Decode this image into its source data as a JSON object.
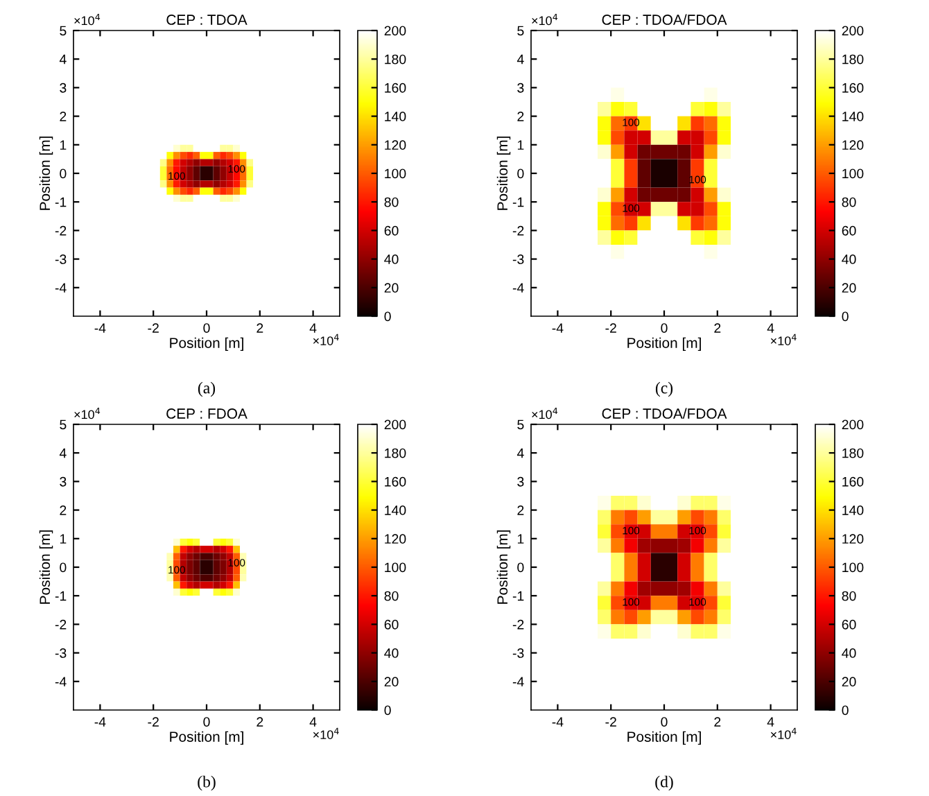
{
  "chart_data": [
    {
      "type": "heatmap",
      "title": "CEP : TDOA",
      "xlabel": "Position [m]",
      "ylabel": "Position [m]",
      "x": [
        -1.875,
        -1.625,
        -1.375,
        -1.125,
        -0.875,
        -0.625,
        -0.375,
        -0.125,
        0.125,
        0.375,
        0.625,
        0.875,
        1.125,
        1.375,
        1.625,
        1.875
      ],
      "y": [
        1.875,
        1.625,
        1.375,
        1.125,
        0.875,
        0.625,
        0.375,
        0.125,
        -0.125,
        -0.375,
        -0.625,
        -0.875,
        -1.125,
        -1.375,
        -1.625,
        -1.875
      ],
      "cells": [
        [
          200,
          200,
          200,
          200,
          200,
          200,
          200,
          200,
          200,
          200,
          200,
          200,
          200,
          200,
          200,
          200
        ],
        [
          200,
          200,
          200,
          200,
          200,
          200,
          200,
          200,
          200,
          200,
          200,
          200,
          200,
          200,
          200,
          200
        ],
        [
          200,
          200,
          200,
          200,
          200,
          200,
          200,
          200,
          200,
          200,
          200,
          200,
          200,
          200,
          200,
          200
        ],
        [
          200,
          200,
          200,
          200,
          200,
          200,
          200,
          200,
          200,
          200,
          200,
          200,
          200,
          200,
          200,
          200
        ],
        [
          200,
          200,
          200,
          190,
          180,
          180,
          200,
          200,
          200,
          200,
          180,
          180,
          190,
          200,
          200,
          200
        ],
        [
          200,
          200,
          150,
          115,
          95,
          85,
          100,
          150,
          150,
          100,
          85,
          95,
          115,
          150,
          200,
          200
        ],
        [
          200,
          175,
          115,
          80,
          60,
          50,
          40,
          50,
          50,
          40,
          50,
          60,
          80,
          115,
          175,
          200
        ],
        [
          200,
          160,
          105,
          75,
          55,
          40,
          25,
          10,
          10,
          25,
          40,
          55,
          75,
          105,
          160,
          200
        ],
        [
          200,
          160,
          105,
          75,
          55,
          40,
          25,
          10,
          10,
          25,
          40,
          55,
          75,
          105,
          160,
          200
        ],
        [
          200,
          175,
          115,
          80,
          60,
          50,
          40,
          50,
          50,
          40,
          50,
          60,
          80,
          115,
          175,
          200
        ],
        [
          200,
          200,
          150,
          115,
          95,
          85,
          100,
          150,
          150,
          100,
          85,
          95,
          115,
          150,
          200,
          200
        ],
        [
          200,
          200,
          200,
          190,
          180,
          180,
          200,
          200,
          200,
          200,
          180,
          180,
          190,
          200,
          200,
          200
        ],
        [
          200,
          200,
          200,
          200,
          200,
          200,
          200,
          200,
          200,
          200,
          200,
          200,
          200,
          200,
          200,
          200
        ],
        [
          200,
          200,
          200,
          200,
          200,
          200,
          200,
          200,
          200,
          200,
          200,
          200,
          200,
          200,
          200,
          200
        ],
        [
          200,
          200,
          200,
          200,
          200,
          200,
          200,
          200,
          200,
          200,
          200,
          200,
          200,
          200,
          200,
          200
        ],
        [
          200,
          200,
          200,
          200,
          200,
          200,
          200,
          200,
          200,
          200,
          200,
          200,
          200,
          200,
          200,
          200
        ]
      ],
      "clim": [
        0,
        200
      ],
      "cticks": [
        0,
        20,
        40,
        60,
        80,
        100,
        120,
        140,
        160,
        180,
        200
      ],
      "xlim": [
        -5,
        5
      ],
      "ylim": [
        -5,
        5
      ],
      "xticks": [
        -4,
        -2,
        0,
        2,
        4
      ],
      "yticks": [
        -4,
        -3,
        -2,
        -1,
        0,
        1,
        2,
        3,
        4,
        5
      ],
      "annotations": [
        "×10$^{4}$",
        "×10$^{4}$",
        "(a)",
        "100",
        "100"
      ]
    },
    {
      "type": "heatmap",
      "title": "CEP : TDOA/FDOA",
      "xlabel": "Position [m]",
      "ylabel": "Position [m]",
      "x": [
        -3.25,
        -2.75,
        -2.25,
        -1.75,
        -1.25,
        -0.75,
        -0.25,
        0.25,
        0.75,
        1.25,
        1.75,
        2.25,
        2.75,
        3.25
      ],
      "y": [
        3.25,
        2.75,
        2.25,
        1.75,
        1.25,
        0.75,
        0.25,
        -0.25,
        -0.75,
        -1.25,
        -1.75,
        -2.25,
        -2.75,
        -3.25
      ],
      "cells": [
        [
          200,
          200,
          200,
          200,
          200,
          200,
          200,
          200,
          200,
          200,
          200,
          200,
          200,
          200
        ],
        [
          200,
          200,
          200,
          195,
          200,
          200,
          200,
          200,
          200,
          200,
          195,
          200,
          200,
          200
        ],
        [
          200,
          200,
          180,
          150,
          160,
          200,
          200,
          200,
          200,
          160,
          150,
          180,
          200,
          200
        ],
        [
          200,
          200,
          150,
          105,
          90,
          140,
          200,
          200,
          140,
          90,
          105,
          150,
          200,
          200
        ],
        [
          200,
          200,
          150,
          95,
          60,
          60,
          180,
          180,
          60,
          60,
          95,
          150,
          200,
          200
        ],
        [
          200,
          200,
          190,
          120,
          60,
          30,
          30,
          30,
          30,
          60,
          120,
          190,
          200,
          200
        ],
        [
          200,
          200,
          200,
          160,
          90,
          25,
          5,
          5,
          25,
          90,
          160,
          200,
          200,
          200
        ],
        [
          200,
          200,
          200,
          160,
          90,
          25,
          5,
          5,
          25,
          90,
          160,
          200,
          200,
          200
        ],
        [
          200,
          200,
          190,
          120,
          60,
          30,
          30,
          30,
          30,
          60,
          120,
          190,
          200,
          200
        ],
        [
          200,
          200,
          150,
          95,
          60,
          60,
          180,
          180,
          60,
          60,
          95,
          150,
          200,
          200
        ],
        [
          200,
          200,
          150,
          105,
          90,
          140,
          200,
          200,
          140,
          90,
          105,
          150,
          200,
          200
        ],
        [
          200,
          200,
          180,
          150,
          160,
          200,
          200,
          200,
          200,
          160,
          150,
          180,
          200,
          200
        ],
        [
          200,
          200,
          200,
          195,
          200,
          200,
          200,
          200,
          200,
          200,
          195,
          200,
          200,
          200
        ],
        [
          200,
          200,
          200,
          200,
          200,
          200,
          200,
          200,
          200,
          200,
          200,
          200,
          200,
          200
        ]
      ],
      "clim": [
        0,
        200
      ],
      "cticks": [
        0,
        20,
        40,
        60,
        80,
        100,
        120,
        140,
        160,
        180,
        200
      ],
      "xlim": [
        -5,
        5
      ],
      "ylim": [
        -5,
        5
      ],
      "xticks": [
        -4,
        -2,
        0,
        2,
        4
      ],
      "yticks": [
        -4,
        -3,
        -2,
        -1,
        0,
        1,
        2,
        3,
        4,
        5
      ],
      "annotations": [
        "×10$^{4}$",
        "×10$^{4}$",
        "(c)",
        "100",
        "100",
        "100"
      ]
    },
    {
      "type": "heatmap",
      "title": "CEP : FDOA",
      "xlabel": "Position [m]",
      "ylabel": "Position [m]",
      "x": [
        -1.875,
        -1.625,
        -1.375,
        -1.125,
        -0.875,
        -0.625,
        -0.375,
        -0.125,
        0.125,
        0.375,
        0.625,
        0.875,
        1.125,
        1.375,
        1.625,
        1.875
      ],
      "y": [
        1.875,
        1.625,
        1.375,
        1.125,
        0.875,
        0.625,
        0.375,
        0.125,
        -0.125,
        -0.375,
        -0.625,
        -0.875,
        -1.125,
        -1.375,
        -1.625,
        -1.875
      ],
      "cells": [
        [
          200,
          200,
          200,
          200,
          200,
          200,
          200,
          200,
          200,
          200,
          200,
          200,
          200,
          200,
          200,
          200
        ],
        [
          200,
          200,
          200,
          200,
          200,
          200,
          200,
          200,
          200,
          200,
          200,
          200,
          200,
          200,
          200,
          200
        ],
        [
          200,
          200,
          200,
          200,
          200,
          200,
          200,
          200,
          200,
          200,
          200,
          200,
          200,
          200,
          200,
          200
        ],
        [
          200,
          200,
          200,
          200,
          200,
          200,
          200,
          200,
          200,
          200,
          200,
          200,
          200,
          200,
          200,
          200
        ],
        [
          200,
          200,
          200,
          190,
          160,
          150,
          160,
          200,
          200,
          160,
          150,
          160,
          190,
          200,
          200,
          200
        ],
        [
          200,
          200,
          200,
          130,
          80,
          60,
          50,
          60,
          60,
          50,
          60,
          80,
          130,
          200,
          200,
          200
        ],
        [
          200,
          200,
          185,
          100,
          55,
          40,
          30,
          20,
          20,
          30,
          40,
          55,
          100,
          185,
          200,
          200
        ],
        [
          200,
          200,
          180,
          95,
          50,
          35,
          25,
          10,
          10,
          25,
          35,
          50,
          95,
          180,
          200,
          200
        ],
        [
          200,
          200,
          180,
          95,
          50,
          35,
          25,
          10,
          10,
          25,
          35,
          50,
          95,
          180,
          200,
          200
        ],
        [
          200,
          200,
          185,
          100,
          55,
          40,
          30,
          20,
          20,
          30,
          40,
          55,
          100,
          185,
          200,
          200
        ],
        [
          200,
          200,
          200,
          130,
          80,
          60,
          50,
          60,
          60,
          50,
          60,
          80,
          130,
          200,
          200,
          200
        ],
        [
          200,
          200,
          200,
          190,
          160,
          150,
          160,
          200,
          200,
          160,
          150,
          160,
          190,
          200,
          200,
          200
        ],
        [
          200,
          200,
          200,
          200,
          200,
          200,
          200,
          200,
          200,
          200,
          200,
          200,
          200,
          200,
          200,
          200
        ],
        [
          200,
          200,
          200,
          200,
          200,
          200,
          200,
          200,
          200,
          200,
          200,
          200,
          200,
          200,
          200,
          200
        ],
        [
          200,
          200,
          200,
          200,
          200,
          200,
          200,
          200,
          200,
          200,
          200,
          200,
          200,
          200,
          200,
          200
        ],
        [
          200,
          200,
          200,
          200,
          200,
          200,
          200,
          200,
          200,
          200,
          200,
          200,
          200,
          200,
          200,
          200
        ]
      ],
      "clim": [
        0,
        200
      ],
      "cticks": [
        0,
        20,
        40,
        60,
        80,
        100,
        120,
        140,
        160,
        180,
        200
      ],
      "xlim": [
        -5,
        5
      ],
      "ylim": [
        -5,
        5
      ],
      "xticks": [
        -4,
        -2,
        0,
        2,
        4
      ],
      "yticks": [
        -4,
        -3,
        -2,
        -1,
        0,
        1,
        2,
        3,
        4,
        5
      ],
      "annotations": [
        "×10$^{4}$",
        "×10$^{4}$",
        "(b)",
        "100",
        "100"
      ]
    },
    {
      "type": "heatmap",
      "title": "CEP : TDOA/FDOA",
      "xlabel": "Position [m]",
      "ylabel": "Position [m]",
      "x": [
        -3.25,
        -2.75,
        -2.25,
        -1.75,
        -1.25,
        -0.75,
        -0.25,
        0.25,
        0.75,
        1.25,
        1.75,
        2.25,
        2.75,
        3.25
      ],
      "y": [
        3.25,
        2.75,
        2.25,
        1.75,
        1.25,
        0.75,
        0.25,
        -0.25,
        -0.75,
        -1.25,
        -1.75,
        -2.25,
        -2.75,
        -3.25
      ],
      "cells": [
        [
          200,
          200,
          200,
          200,
          200,
          200,
          200,
          200,
          200,
          200,
          200,
          200,
          200,
          200
        ],
        [
          200,
          200,
          200,
          200,
          200,
          200,
          200,
          200,
          200,
          200,
          200,
          200,
          200,
          200
        ],
        [
          200,
          200,
          195,
          170,
          170,
          190,
          200,
          200,
          190,
          170,
          170,
          195,
          200,
          200
        ],
        [
          200,
          200,
          170,
          110,
          95,
          120,
          180,
          180,
          120,
          95,
          110,
          170,
          200,
          200
        ],
        [
          200,
          200,
          160,
          95,
          65,
          60,
          110,
          110,
          60,
          65,
          95,
          160,
          200,
          200
        ],
        [
          200,
          200,
          180,
          110,
          70,
          45,
          40,
          40,
          45,
          70,
          110,
          180,
          200,
          200
        ],
        [
          200,
          200,
          200,
          170,
          110,
          60,
          10,
          10,
          60,
          110,
          170,
          200,
          200,
          200
        ],
        [
          200,
          200,
          200,
          170,
          110,
          60,
          10,
          10,
          60,
          110,
          170,
          200,
          200,
          200
        ],
        [
          200,
          200,
          180,
          110,
          70,
          45,
          40,
          40,
          45,
          70,
          110,
          180,
          200,
          200
        ],
        [
          200,
          200,
          160,
          95,
          65,
          60,
          110,
          110,
          60,
          65,
          95,
          160,
          200,
          200
        ],
        [
          200,
          200,
          170,
          110,
          95,
          120,
          180,
          180,
          120,
          95,
          110,
          170,
          200,
          200
        ],
        [
          200,
          200,
          195,
          170,
          170,
          190,
          200,
          200,
          190,
          170,
          170,
          195,
          200,
          200
        ],
        [
          200,
          200,
          200,
          200,
          200,
          200,
          200,
          200,
          200,
          200,
          200,
          200,
          200,
          200
        ],
        [
          200,
          200,
          200,
          200,
          200,
          200,
          200,
          200,
          200,
          200,
          200,
          200,
          200,
          200
        ]
      ],
      "clim": [
        0,
        200
      ],
      "cticks": [
        0,
        20,
        40,
        60,
        80,
        100,
        120,
        140,
        160,
        180,
        200
      ],
      "xlim": [
        -5,
        5
      ],
      "ylim": [
        -5,
        5
      ],
      "xticks": [
        -4,
        -2,
        0,
        2,
        4
      ],
      "yticks": [
        -4,
        -3,
        -2,
        -1,
        0,
        1,
        2,
        3,
        4,
        5
      ],
      "annotations": [
        "×10$^{4}$",
        "×10$^{4}$",
        "(d)",
        "100",
        "100",
        "100",
        "100"
      ]
    }
  ]
}
